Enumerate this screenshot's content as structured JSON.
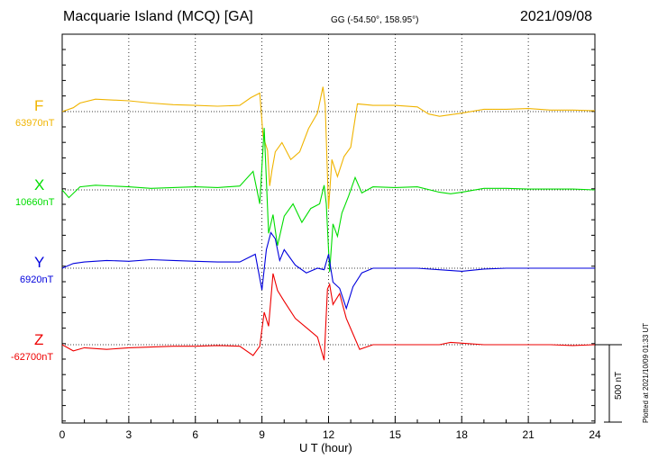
{
  "header": {
    "title": "Macquarie Island (MCQ)  [GA]",
    "coords": "GG (-54.50°, 158.95°)",
    "date": "2021/09/08"
  },
  "footer": {
    "xlabel": "U T (hour)",
    "plotted": "Plotted at 2021/10/09 01:33 UT",
    "scale_label": "500 nT"
  },
  "chart_data": {
    "type": "line",
    "title": "Macquarie Island (MCQ)  [GA]",
    "xlabel": "U T (hour)",
    "xlim": [
      0,
      24
    ],
    "x_ticks": [
      0,
      3,
      6,
      9,
      12,
      15,
      18,
      21,
      24
    ],
    "grid": "dotted",
    "scale_bar_nT": 500,
    "series": [
      {
        "name": "F",
        "baseline_label": "63970nT",
        "color": "#f0b400",
        "x": [
          0,
          0.5,
          0.8,
          1.5,
          3,
          4,
          5,
          6,
          7,
          8,
          8.5,
          8.9,
          9.05,
          9.25,
          9.35,
          9.45,
          9.6,
          9.9,
          10.3,
          10.7,
          11.1,
          11.5,
          11.75,
          11.85,
          12.0,
          12.15,
          12.4,
          12.7,
          13.0,
          13.3,
          14,
          15,
          16,
          16.5,
          17,
          17.5,
          18,
          19,
          20,
          21,
          22,
          23,
          24
        ],
        "values": [
          0,
          25,
          55,
          80,
          70,
          55,
          45,
          40,
          35,
          40,
          90,
          120,
          -160,
          -250,
          -480,
          -380,
          -260,
          -200,
          -310,
          -260,
          -110,
          -10,
          160,
          40,
          -630,
          -310,
          -420,
          -290,
          -230,
          50,
          40,
          40,
          30,
          -15,
          -30,
          -20,
          -10,
          15,
          15,
          20,
          10,
          10,
          5
        ]
      },
      {
        "name": "X",
        "baseline_label": "10660nT",
        "color": "#00dd00",
        "x": [
          0,
          0.3,
          0.8,
          1.5,
          3,
          4,
          5,
          6,
          7,
          8,
          8.6,
          8.9,
          9.1,
          9.3,
          9.5,
          9.7,
          10.0,
          10.4,
          10.8,
          11.2,
          11.6,
          11.8,
          11.9,
          12.05,
          12.2,
          12.4,
          12.6,
          12.9,
          13.2,
          13.5,
          14,
          15,
          16,
          17,
          17.5,
          18,
          19,
          20,
          21,
          22,
          23,
          24
        ],
        "values": [
          0,
          -50,
          20,
          30,
          20,
          10,
          15,
          20,
          15,
          25,
          120,
          -90,
          400,
          -280,
          -160,
          -360,
          -170,
          -90,
          -210,
          -120,
          -90,
          30,
          -90,
          -530,
          -220,
          -300,
          -150,
          -40,
          80,
          -20,
          20,
          15,
          20,
          -15,
          -25,
          -15,
          10,
          10,
          5,
          5,
          5,
          0
        ]
      },
      {
        "name": "Y",
        "baseline_label": "6920nT",
        "color": "#0000dd",
        "x": [
          0,
          0.5,
          1,
          2,
          3,
          4,
          5,
          6,
          7,
          8,
          8.7,
          9.0,
          9.2,
          9.4,
          9.6,
          9.8,
          10.0,
          10.5,
          11.0,
          11.5,
          11.8,
          12.0,
          12.2,
          12.5,
          12.8,
          13.1,
          13.5,
          14,
          15,
          16,
          17,
          18,
          19,
          20,
          21,
          22,
          23,
          24
        ],
        "values": [
          0,
          30,
          40,
          50,
          45,
          55,
          50,
          45,
          40,
          40,
          90,
          -140,
          120,
          230,
          190,
          50,
          120,
          20,
          -30,
          0,
          -10,
          90,
          -90,
          -130,
          -260,
          -120,
          -30,
          0,
          0,
          0,
          -10,
          -20,
          -5,
          0,
          0,
          0,
          0,
          0
        ]
      },
      {
        "name": "Z",
        "baseline_label": "-62700nT",
        "color": "#ee0000",
        "x": [
          0,
          0.5,
          1,
          2,
          3,
          4,
          5,
          6,
          7,
          8,
          8.6,
          8.9,
          9.1,
          9.3,
          9.5,
          9.7,
          10.0,
          10.5,
          11.0,
          11.5,
          11.8,
          11.95,
          12.05,
          12.2,
          12.5,
          12.8,
          13.1,
          13.4,
          14,
          15,
          16,
          17,
          17.5,
          18,
          19,
          20,
          21,
          22,
          23,
          24
        ],
        "values": [
          0,
          -40,
          -20,
          -30,
          -20,
          -15,
          -10,
          -10,
          -5,
          -10,
          -70,
          -10,
          210,
          120,
          460,
          350,
          280,
          170,
          110,
          50,
          -100,
          360,
          390,
          260,
          330,
          170,
          70,
          -30,
          0,
          0,
          0,
          0,
          15,
          10,
          0,
          0,
          0,
          0,
          -5,
          0
        ]
      }
    ]
  }
}
